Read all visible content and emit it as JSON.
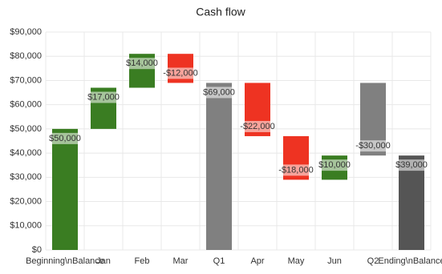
{
  "chart_data": {
    "type": "waterfall",
    "title": "Cash flow",
    "categories": [
      "Beginning\\nBalance",
      "Jan",
      "Feb",
      "Mar",
      "Q1",
      "Apr",
      "May",
      "Jun",
      "Q2",
      "Ending\\nBalance"
    ],
    "values": [
      50000,
      17000,
      14000,
      -12000,
      69000,
      -22000,
      -18000,
      10000,
      -30000,
      39000
    ],
    "value_labels": [
      "$50,000",
      "$17,000",
      "$14,000",
      "-$12,000",
      "$69,000",
      "-$22,000",
      "-$18,000",
      "$10,000",
      "-$30,000",
      "$39,000"
    ],
    "measure": [
      "relative",
      "relative",
      "relative",
      "relative",
      "total",
      "relative",
      "relative",
      "relative",
      "total",
      "total"
    ],
    "colors": [
      "#3a7d22",
      "#3a7d22",
      "#3a7d22",
      "#ee3322",
      "#808080",
      "#ee3322",
      "#ee3322",
      "#3a7d22",
      "#808080",
      "#555555"
    ],
    "ylim": [
      0,
      90000
    ],
    "yticks": [
      {
        "value": 0,
        "label": "$0"
      },
      {
        "value": 10000,
        "label": "$10,000"
      },
      {
        "value": 20000,
        "label": "$20,000"
      },
      {
        "value": 30000,
        "label": "$30,000"
      },
      {
        "value": 40000,
        "label": "$40,000"
      },
      {
        "value": 50000,
        "label": "$50,000"
      },
      {
        "value": 60000,
        "label": "$60,000"
      },
      {
        "value": 70000,
        "label": "$70,000"
      },
      {
        "value": 80000,
        "label": "$80,000"
      },
      {
        "value": 90000,
        "label": "$90,000"
      }
    ],
    "grid": true
  }
}
